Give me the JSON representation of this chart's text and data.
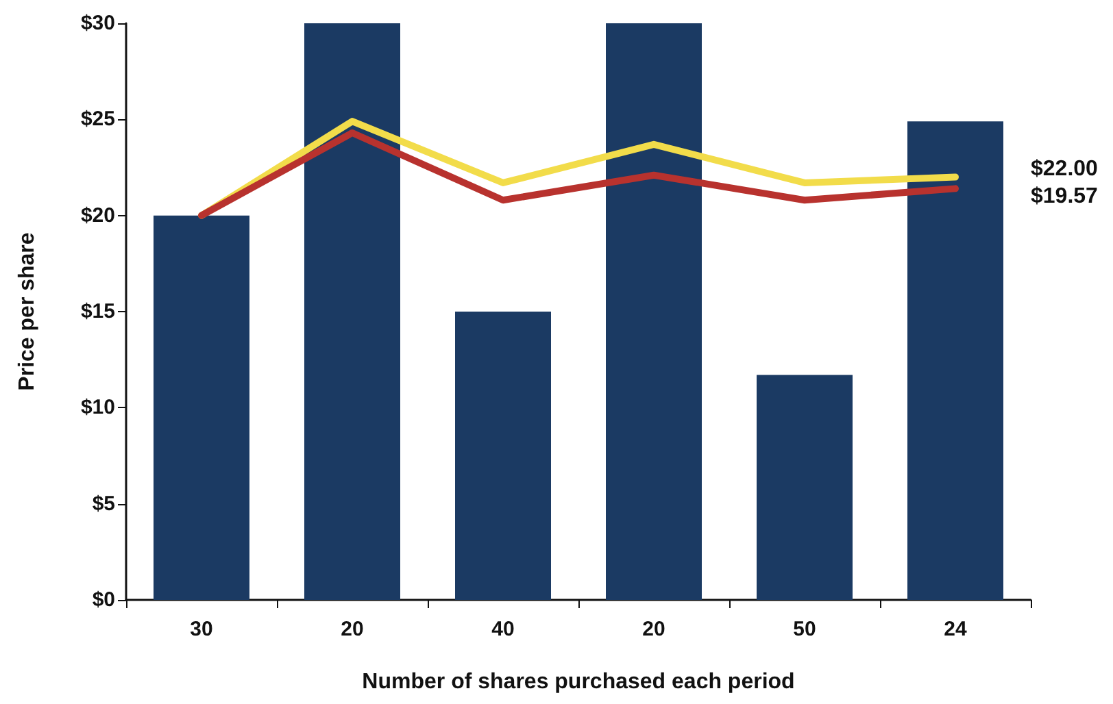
{
  "chart_data": {
    "type": "bar",
    "xlabel": "Number of shares purchased each period",
    "ylabel": "Price per share",
    "categories": [
      "30",
      "20",
      "40",
      "20",
      "50",
      "24"
    ],
    "series": [
      {
        "color": "#1b3a63",
        "values": [
          20,
          30,
          15,
          30,
          11.7,
          24.9
        ]
      },
      {
        "type": "line",
        "color": "#f2dc4a",
        "values": [
          20,
          24.9,
          21.7,
          23.7,
          21.7,
          22
        ]
      },
      {
        "type": "line",
        "color": "#b8322e",
        "values": [
          20,
          24.3,
          20.8,
          22.1,
          20.8,
          21.4
        ]
      }
    ],
    "ylim": [
      0,
      30
    ],
    "yticks": [
      {
        "value": 0,
        "label": "$0"
      },
      {
        "value": 5,
        "label": "$5"
      },
      {
        "value": 10,
        "label": "$10"
      },
      {
        "value": 15,
        "label": "$15"
      },
      {
        "value": 20,
        "label": "$20"
      },
      {
        "value": 25,
        "label": "$25"
      },
      {
        "value": 30,
        "label": "$30"
      }
    ],
    "annotations": [
      "$22.00",
      "$19.57"
    ],
    "marker": "none",
    "line_style": "solid",
    "grid": false
  }
}
